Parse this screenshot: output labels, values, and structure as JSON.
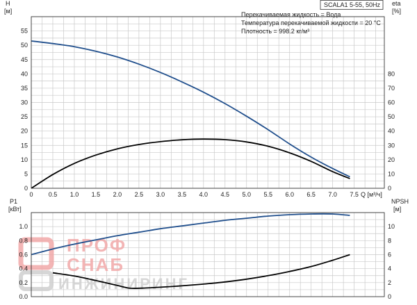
{
  "chart_data": [
    {
      "type": "line",
      "panel": "top",
      "model_label": "SCALA1 5-55, 50Hz",
      "info_lines": [
        "Перекачиваемая жидкость = Вода",
        "Температура перекачиваемой жидкости = 20 °C",
        "Плотность = 998.2 кг/м³"
      ],
      "x_ticks": [
        "0",
        "0.5",
        "1.0",
        "1.5",
        "2.0",
        "2.5",
        "3.0",
        "3.5",
        "4.0",
        "4.5",
        "5.0",
        "5.5",
        "6.0",
        "6.5",
        "7.0",
        "7.5"
      ],
      "xlabel": "Q [м³/ч]",
      "xlim": [
        0,
        8.2
      ],
      "y_left_label_1": "H",
      "y_left_label_2": "[м]",
      "y_left_ticks": [
        "0",
        "5",
        "10",
        "15",
        "20",
        "25",
        "30",
        "35",
        "40",
        "45",
        "50",
        "55"
      ],
      "ylim_left": [
        0,
        60
      ],
      "y_right_label_1": "eta",
      "y_right_label_2": "[%]",
      "y_right_ticks": [
        "0",
        "10",
        "20",
        "30",
        "40",
        "50",
        "60",
        "70",
        "80"
      ],
      "ylim_right": [
        0,
        120
      ],
      "grid": true,
      "series": [
        {
          "color": "#1f4e8c",
          "axis": "left",
          "x": [
            0,
            0.5,
            1.0,
            1.5,
            2.0,
            2.5,
            3.0,
            3.5,
            4.0,
            4.5,
            5.0,
            5.5,
            6.0,
            6.5,
            7.0,
            7.4
          ],
          "values": [
            51.5,
            50.6,
            49.5,
            47.9,
            45.9,
            43.4,
            40.5,
            37.2,
            33.6,
            29.6,
            25.2,
            20.5,
            15.5,
            10.9,
            6.9,
            4.0
          ]
        },
        {
          "color": "#000000",
          "axis": "right",
          "x": [
            0,
            0.5,
            1.0,
            1.5,
            2.0,
            2.5,
            3.0,
            3.5,
            4.0,
            4.5,
            5.0,
            5.5,
            6.0,
            6.5,
            7.0,
            7.4
          ],
          "values": [
            0,
            9.6,
            17.4,
            23.2,
            27.6,
            30.6,
            32.6,
            33.9,
            34.4,
            34.0,
            32.4,
            29.4,
            24.8,
            18.8,
            11.6,
            6.8
          ]
        }
      ]
    },
    {
      "type": "line",
      "panel": "bottom",
      "xlim": [
        0,
        8.2
      ],
      "y_left_label_1": "P1",
      "y_left_label_2": "[кВт]",
      "y_left_ticks": [
        "0.0",
        "0.2",
        "0.4",
        "0.6",
        "0.8",
        "1.0"
      ],
      "ylim_left": [
        0,
        1.2
      ],
      "y_right_label_1": "NPSH",
      "y_right_label_2": "[м]",
      "y_right_ticks": [
        "0",
        "2",
        "4",
        "6",
        "8",
        "10"
      ],
      "ylim_right": [
        0,
        12
      ],
      "grid": true,
      "series": [
        {
          "color": "#1f4e8c",
          "axis": "left",
          "x": [
            0,
            0.5,
            1.0,
            1.5,
            2.0,
            2.5,
            3.0,
            3.5,
            4.0,
            4.5,
            5.0,
            5.5,
            6.0,
            6.5,
            7.0,
            7.4
          ],
          "values": [
            0.6,
            0.68,
            0.75,
            0.81,
            0.87,
            0.92,
            0.97,
            1.01,
            1.05,
            1.09,
            1.12,
            1.15,
            1.17,
            1.18,
            1.18,
            1.16
          ]
        },
        {
          "color": "#000000",
          "axis": "right",
          "x": [
            0.5,
            1.0,
            1.5,
            2.0,
            2.3,
            2.7,
            3.0,
            3.5,
            4.0,
            4.5,
            5.0,
            5.5,
            6.0,
            6.5,
            7.0,
            7.4
          ],
          "values": [
            3.4,
            2.95,
            2.3,
            1.6,
            1.2,
            1.25,
            1.35,
            1.55,
            1.8,
            2.1,
            2.5,
            3.0,
            3.6,
            4.3,
            5.2,
            6.0
          ]
        }
      ]
    }
  ],
  "watermark": {
    "line1": "ПРОФ",
    "line2": "СНАБ",
    "line3": "ИНЖИНИРИНГ"
  }
}
